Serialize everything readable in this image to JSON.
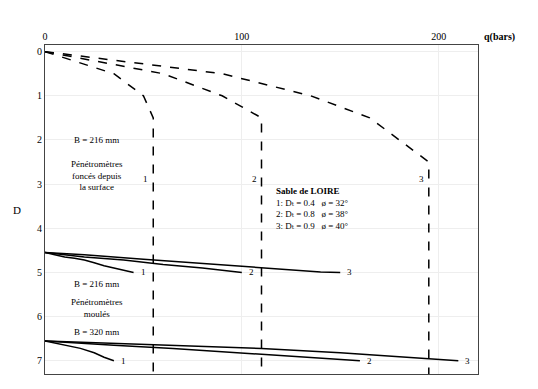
{
  "chart_data": {
    "type": "line",
    "xlabel": "q(bars)",
    "ylabel": "D",
    "xlim": [
      0,
      220
    ],
    "ylim": [
      7.3,
      -0.15
    ],
    "xticks": [
      0,
      100,
      200
    ],
    "yticks": [
      0,
      1,
      2,
      3,
      4,
      5,
      6,
      7
    ],
    "grid": true,
    "color": "#000000",
    "annotations": [
      "B = 216 mm",
      "Pénétromètres\nfoncés depuis\nla surface",
      "B = 216 mm",
      "Pénétromètres\nmoulés",
      "B = 320 mm"
    ],
    "key": {
      "title": "Sable de LOIRE",
      "lines": [
        "1: Dₜ = 0.4   ø = 32°",
        "2: Dₜ = 0.8   ø = 38°",
        "3: Dₜ = 0.9   ø = 40°"
      ]
    },
    "series": [
      {
        "name": "1",
        "line_style": "dashed",
        "x": [
          0,
          35,
          50,
          55,
          55,
          55
        ],
        "values": [
          0,
          0.5,
          1.0,
          1.5,
          2.5,
          7.3
        ]
      },
      {
        "name": "2",
        "line_style": "dashed",
        "x": [
          0,
          60,
          90,
          110,
          110,
          110
        ],
        "values": [
          0,
          0.5,
          1.0,
          1.5,
          2.5,
          7.3
        ]
      },
      {
        "name": "3",
        "line_style": "dashed",
        "x": [
          0,
          90,
          135,
          165,
          195,
          195
        ],
        "values": [
          0,
          0.5,
          1.0,
          1.5,
          2.5,
          7.3
        ]
      },
      {
        "name": "1",
        "line_style": "solid",
        "x": [
          0,
          5,
          10,
          15,
          20,
          25,
          30,
          35,
          40,
          45
        ],
        "values": [
          4.55,
          4.6,
          4.65,
          4.68,
          4.72,
          4.78,
          4.85,
          4.9,
          4.95,
          5.0
        ]
      },
      {
        "name": "2",
        "line_style": "solid",
        "x": [
          0,
          10,
          20,
          40,
          60,
          80,
          90,
          95,
          100
        ],
        "values": [
          4.55,
          4.6,
          4.65,
          4.72,
          4.82,
          4.9,
          4.95,
          4.98,
          5.0
        ]
      },
      {
        "name": "3",
        "line_style": "solid",
        "x": [
          0,
          20,
          50,
          80,
          100,
          120,
          130,
          140,
          150
        ],
        "values": [
          4.55,
          4.6,
          4.7,
          4.8,
          4.87,
          4.93,
          4.97,
          4.99,
          5.0
        ]
      },
      {
        "name": "1",
        "line_style": "solid",
        "x": [
          0,
          5,
          10,
          18,
          25,
          30,
          35
        ],
        "values": [
          6.55,
          6.6,
          6.65,
          6.72,
          6.82,
          6.92,
          7.0
        ]
      },
      {
        "name": "2",
        "line_style": "solid",
        "x": [
          0,
          15,
          35,
          65,
          100,
          130,
          150,
          160
        ],
        "values": [
          6.55,
          6.6,
          6.65,
          6.72,
          6.82,
          6.92,
          6.97,
          7.0
        ]
      },
      {
        "name": "3",
        "line_style": "solid",
        "x": [
          0,
          30,
          70,
          110,
          150,
          185,
          200,
          210
        ],
        "values": [
          6.55,
          6.6,
          6.65,
          6.72,
          6.82,
          6.92,
          6.97,
          7.0
        ]
      }
    ]
  }
}
